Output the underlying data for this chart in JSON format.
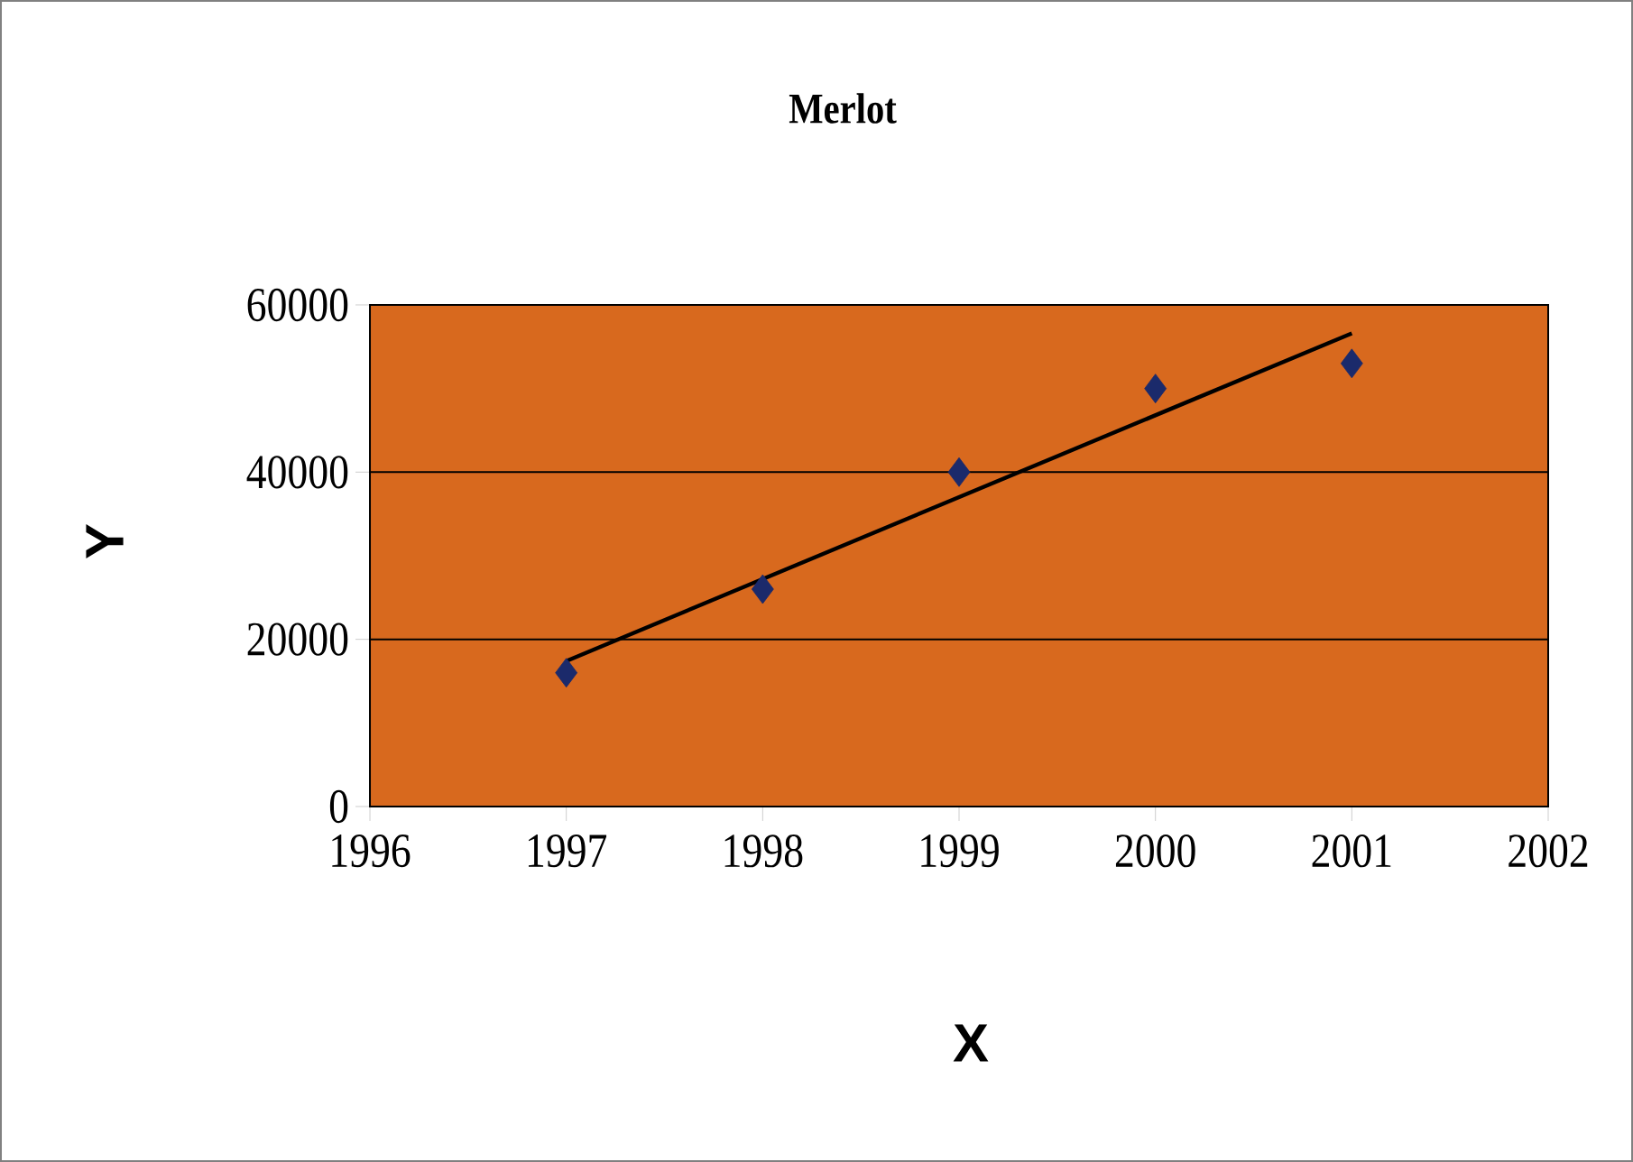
{
  "chart_data": {
    "type": "scatter",
    "title": "Merlot",
    "xlabel": "X",
    "ylabel": "Y",
    "x": [
      1997,
      1998,
      1999,
      2000,
      2001
    ],
    "series": [
      {
        "color": "#1b2a6b",
        "marker": "diamond",
        "values": [
          16000,
          26000,
          40000,
          50000,
          53000
        ]
      },
      {
        "type": "line",
        "color": "#000000",
        "marker": "none",
        "x": [
          1997,
          2001
        ],
        "values": [
          17400,
          56600
        ]
      }
    ],
    "xlim": [
      1996,
      2002
    ],
    "xticks": [
      1996,
      1997,
      1998,
      1999,
      2000,
      2001,
      2002
    ],
    "ylim": [
      0,
      60000
    ],
    "yticks": [
      0,
      20000,
      40000,
      60000
    ],
    "grid": "y"
  }
}
